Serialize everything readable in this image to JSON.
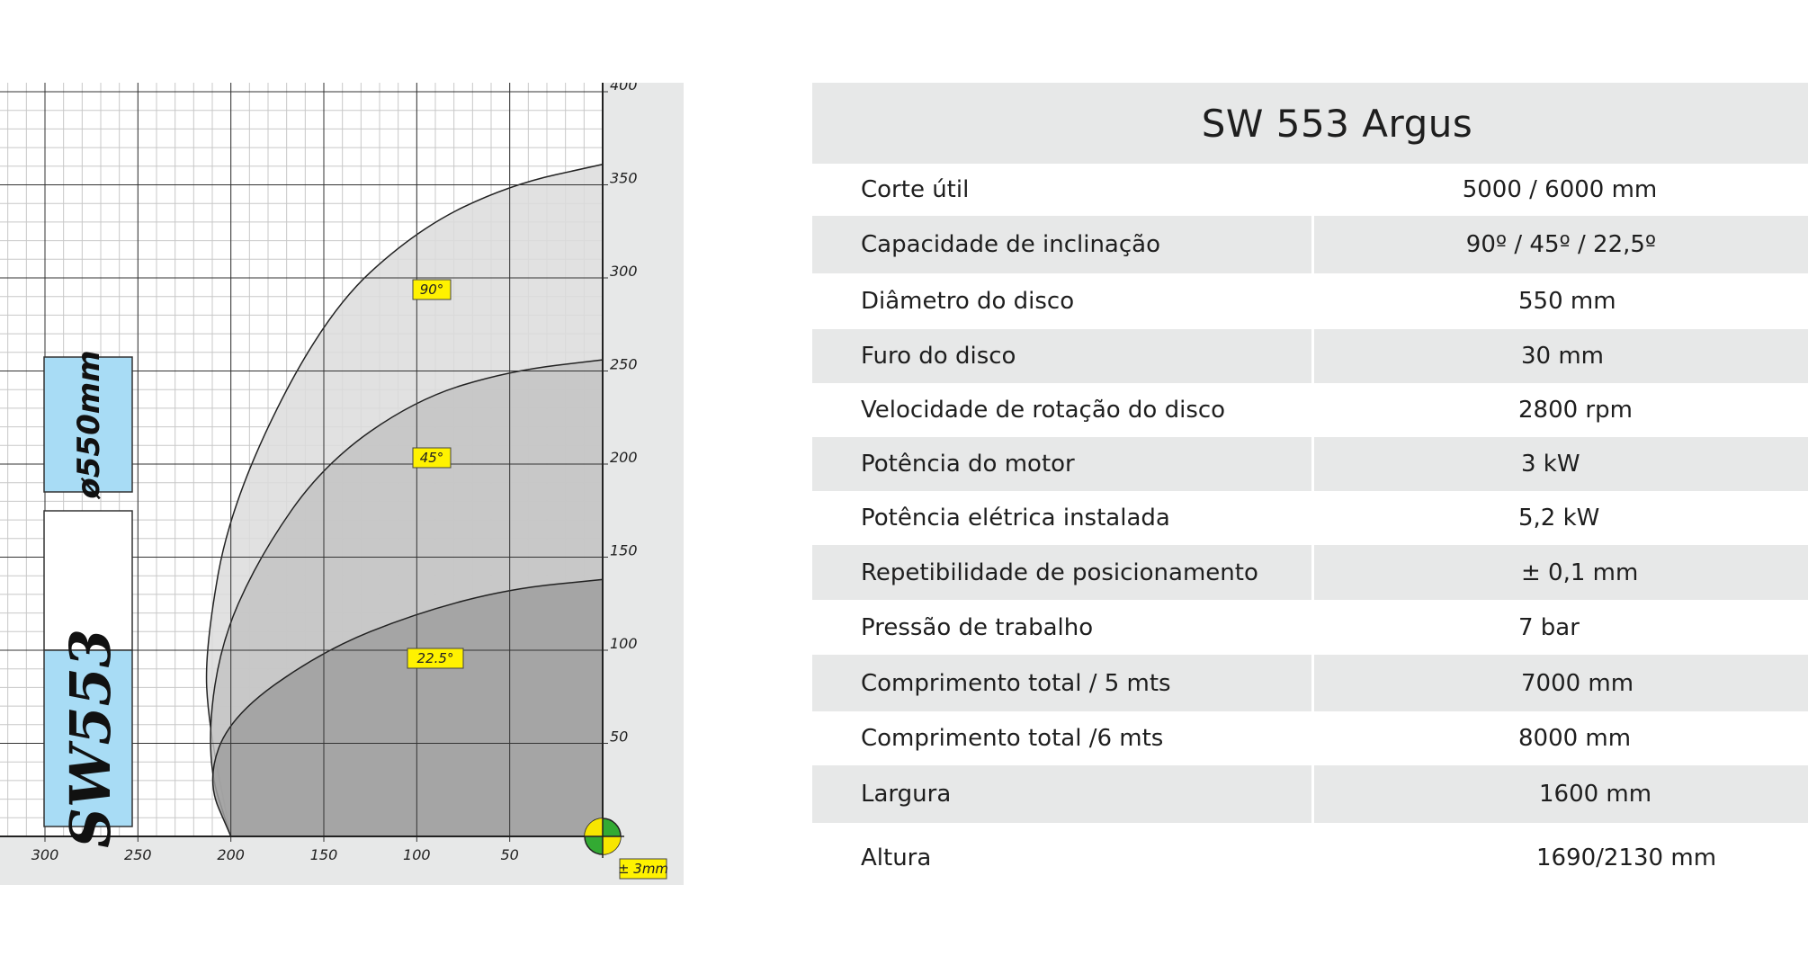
{
  "chart_data": {
    "type": "area",
    "x_axis": {
      "ticks": [
        300,
        250,
        200,
        150,
        100,
        50
      ],
      "range": [
        0,
        325
      ],
      "reversed": true
    },
    "y_axis": {
      "ticks": [
        400,
        350,
        300,
        250,
        200,
        150,
        100,
        50
      ],
      "range": [
        0,
        400
      ],
      "position": "right"
    },
    "grid": true,
    "series": [
      {
        "name": "90°",
        "points": [
          [
            200,
            0
          ],
          [
            212,
            60
          ],
          [
            214,
            100
          ],
          [
            200,
            180
          ],
          [
            150,
            280
          ],
          [
            100,
            326
          ],
          [
            50,
            350
          ],
          [
            0,
            361
          ]
        ]
      },
      {
        "name": "45°",
        "points": [
          [
            200,
            0
          ],
          [
            213,
            40
          ],
          [
            207,
            100
          ],
          [
            185,
            150
          ],
          [
            150,
            200
          ],
          [
            100,
            235
          ],
          [
            50,
            250
          ],
          [
            0,
            256
          ]
        ]
      },
      {
        "name": "22.5°",
        "points": [
          [
            200,
            0
          ],
          [
            213,
            30
          ],
          [
            200,
            65
          ],
          [
            150,
            100
          ],
          [
            100,
            120
          ],
          [
            50,
            133
          ],
          [
            0,
            138
          ]
        ]
      }
    ],
    "colors": {
      "90°": "#dcdcdc",
      "45°": "#c3c3c3",
      "22.5°": "#9f9f9f",
      "label_tag": "#fff200",
      "side_box": "#a8dcf5",
      "background": "#e7e8e8"
    },
    "annotations": {
      "tolerance": "± 3mm",
      "side_labels": [
        "ø550mm",
        "SW553"
      ]
    }
  },
  "spec_table": {
    "title": "SW 553 Argus",
    "rows": [
      {
        "label": "Corte útil",
        "value": "5000 / 6000 mm"
      },
      {
        "label": "Capacidade de inclinação",
        "value": "90º / 45º / 22,5º"
      },
      {
        "label": "Diâmetro do disco",
        "value": "550 mm"
      },
      {
        "label": "Furo do disco",
        "value": "30 mm"
      },
      {
        "label": "Velocidade de rotação do disco",
        "value": "2800 rpm"
      },
      {
        "label": "Potência do motor",
        "value": "3 kW"
      },
      {
        "label": "Potência elétrica instalada",
        "value": "5,2 kW"
      },
      {
        "label": "Repetibilidade de posicionamento",
        "value": "± 0,1 mm"
      },
      {
        "label": "Pressão de trabalho",
        "value": "7 bar"
      },
      {
        "label": "Comprimento total / 5 mts",
        "value": "7000 mm"
      },
      {
        "label": "Comprimento total /6 mts",
        "value": "8000 mm"
      },
      {
        "label": "Largura",
        "value": "1600 mm"
      },
      {
        "label": "Altura",
        "value": "1690/2130 mm"
      }
    ]
  }
}
